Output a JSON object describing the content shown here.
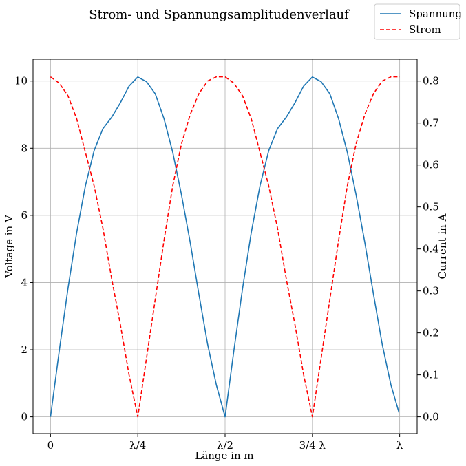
{
  "chart_data": {
    "type": "line",
    "title": "Strom- und Spannungsamplitudenverlauf",
    "xlabel": "Länge in m",
    "ylabel_left": "Voltage in V",
    "ylabel_right": "Current in A",
    "x_ticks": [
      {
        "value": 0,
        "label": "0"
      },
      {
        "value": 0.25,
        "label": "λ/4"
      },
      {
        "value": 0.5,
        "label": "λ/2"
      },
      {
        "value": 0.75,
        "label": "3/4 λ"
      },
      {
        "value": 1.0,
        "label": "λ"
      }
    ],
    "xlim": [
      -0.05,
      1.05
    ],
    "ylim_left": [
      -0.5,
      10.65
    ],
    "ylim_right": [
      -0.04,
      0.852
    ],
    "left_ticks": [
      0,
      2,
      4,
      6,
      8,
      10
    ],
    "right_ticks": [
      "0.0",
      "0.1",
      "0.2",
      "0.3",
      "0.4",
      "0.5",
      "0.6",
      "0.7",
      "0.8"
    ],
    "grid": true,
    "legend_position": "top-right",
    "series": [
      {
        "name": "Spannung",
        "axis": "left",
        "color": "#1f77b4",
        "style": "solid",
        "points": [
          [
            0,
            0.0
          ],
          [
            0.025,
            1.96
          ],
          [
            0.05,
            3.82
          ],
          [
            0.075,
            5.49
          ],
          [
            0.1,
            6.88
          ],
          [
            0.125,
            7.93
          ],
          [
            0.15,
            8.58
          ],
          [
            0.175,
            8.92
          ],
          [
            0.2,
            9.35
          ],
          [
            0.225,
            9.85
          ],
          [
            0.25,
            10.12
          ],
          [
            0.275,
            9.98
          ],
          [
            0.3,
            9.62
          ],
          [
            0.325,
            8.88
          ],
          [
            0.35,
            7.88
          ],
          [
            0.375,
            6.62
          ],
          [
            0.4,
            5.2
          ],
          [
            0.425,
            3.65
          ],
          [
            0.45,
            2.16
          ],
          [
            0.475,
            0.95
          ],
          [
            0.5,
            0.0
          ],
          [
            0.525,
            1.96
          ],
          [
            0.55,
            3.82
          ],
          [
            0.575,
            5.49
          ],
          [
            0.6,
            6.88
          ],
          [
            0.625,
            7.93
          ],
          [
            0.65,
            8.58
          ],
          [
            0.675,
            8.92
          ],
          [
            0.7,
            9.35
          ],
          [
            0.725,
            9.85
          ],
          [
            0.75,
            10.12
          ],
          [
            0.775,
            9.98
          ],
          [
            0.8,
            9.62
          ],
          [
            0.825,
            8.88
          ],
          [
            0.85,
            7.88
          ],
          [
            0.875,
            6.62
          ],
          [
            0.9,
            5.2
          ],
          [
            0.925,
            3.65
          ],
          [
            0.95,
            2.16
          ],
          [
            0.975,
            0.95
          ],
          [
            0.998,
            0.13
          ]
        ]
      },
      {
        "name": "Strom",
        "axis": "right",
        "color": "#ff0000",
        "style": "dashed",
        "points": [
          [
            0,
            0.81
          ],
          [
            0.025,
            0.795
          ],
          [
            0.05,
            0.765
          ],
          [
            0.075,
            0.71
          ],
          [
            0.1,
            0.63
          ],
          [
            0.125,
            0.55
          ],
          [
            0.15,
            0.45
          ],
          [
            0.175,
            0.33
          ],
          [
            0.2,
            0.22
          ],
          [
            0.225,
            0.1
          ],
          [
            0.25,
            0.0
          ],
          [
            0.275,
            0.14
          ],
          [
            0.3,
            0.28
          ],
          [
            0.325,
            0.42
          ],
          [
            0.35,
            0.55
          ],
          [
            0.375,
            0.65
          ],
          [
            0.4,
            0.72
          ],
          [
            0.425,
            0.77
          ],
          [
            0.45,
            0.8
          ],
          [
            0.475,
            0.81
          ],
          [
            0.5,
            0.81
          ],
          [
            0.525,
            0.795
          ],
          [
            0.55,
            0.765
          ],
          [
            0.575,
            0.71
          ],
          [
            0.6,
            0.63
          ],
          [
            0.625,
            0.55
          ],
          [
            0.65,
            0.45
          ],
          [
            0.675,
            0.33
          ],
          [
            0.7,
            0.22
          ],
          [
            0.725,
            0.1
          ],
          [
            0.75,
            0.0
          ],
          [
            0.775,
            0.14
          ],
          [
            0.8,
            0.28
          ],
          [
            0.825,
            0.42
          ],
          [
            0.85,
            0.55
          ],
          [
            0.875,
            0.65
          ],
          [
            0.9,
            0.72
          ],
          [
            0.925,
            0.77
          ],
          [
            0.95,
            0.8
          ],
          [
            0.975,
            0.81
          ],
          [
            1.0,
            0.81
          ]
        ]
      }
    ]
  }
}
